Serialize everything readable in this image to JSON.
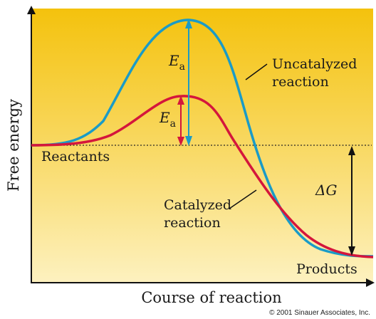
{
  "diagram": {
    "y_axis_label": "Free energy",
    "x_axis_label": "Course of reaction",
    "uncatalyzed_label_line1": "Uncatalyzed",
    "uncatalyzed_label_line2": "reaction",
    "catalyzed_label_line1": "Catalyzed",
    "catalyzed_label_line2": "reaction",
    "reactants_label": "Reactants",
    "products_label": "Products",
    "ea_symbol": "E",
    "ea_subscript": "a",
    "delta_g_label": "ΔG",
    "copyright": "© 2001 Sinauer Associates, Inc."
  },
  "colors": {
    "uncatalyzed_curve": "#1a9bc7",
    "catalyzed_curve": "#d4163c",
    "background_top": "#f4c20d",
    "background_bottom": "#fdf1bf"
  }
}
